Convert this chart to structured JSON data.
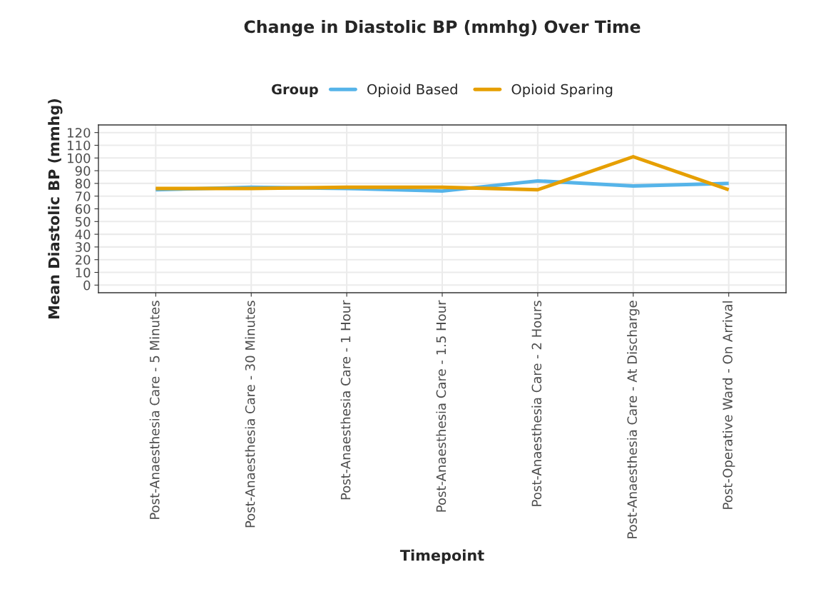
{
  "chart_data": {
    "type": "line",
    "title": "Change in Diastolic BP (mmhg) Over Time",
    "xlabel": "Timepoint",
    "ylabel": "Mean Diastolic BP (mmhg)",
    "legend_title": "Group",
    "legend": "top",
    "categories": [
      "Post-Anaesthesia Care - 5 Minutes",
      "Post-Anaesthesia Care - 30 Minutes",
      "Post-Anaesthesia Care - 1 Hour",
      "Post-Anaesthesia Care - 1.5 Hour",
      "Post-Anaesthesia Care - 2 Hours",
      "Post-Anaesthesia Care - At Discharge",
      "Post-Operative Ward - On Arrival"
    ],
    "series": [
      {
        "name": "Opioid Based",
        "color": "#56b4e9",
        "values": [
          75,
          77,
          76,
          74,
          82,
          78,
          80
        ]
      },
      {
        "name": "Opioid Sparing",
        "color": "#e69f00",
        "values": [
          76,
          76,
          77,
          77,
          75,
          101,
          75
        ]
      }
    ],
    "ylim": [
      -6,
      126
    ],
    "yticks": [
      0,
      10,
      20,
      30,
      40,
      50,
      60,
      70,
      80,
      90,
      100,
      110,
      120
    ],
    "grid": true,
    "line_style": "solid",
    "marker": "none"
  }
}
